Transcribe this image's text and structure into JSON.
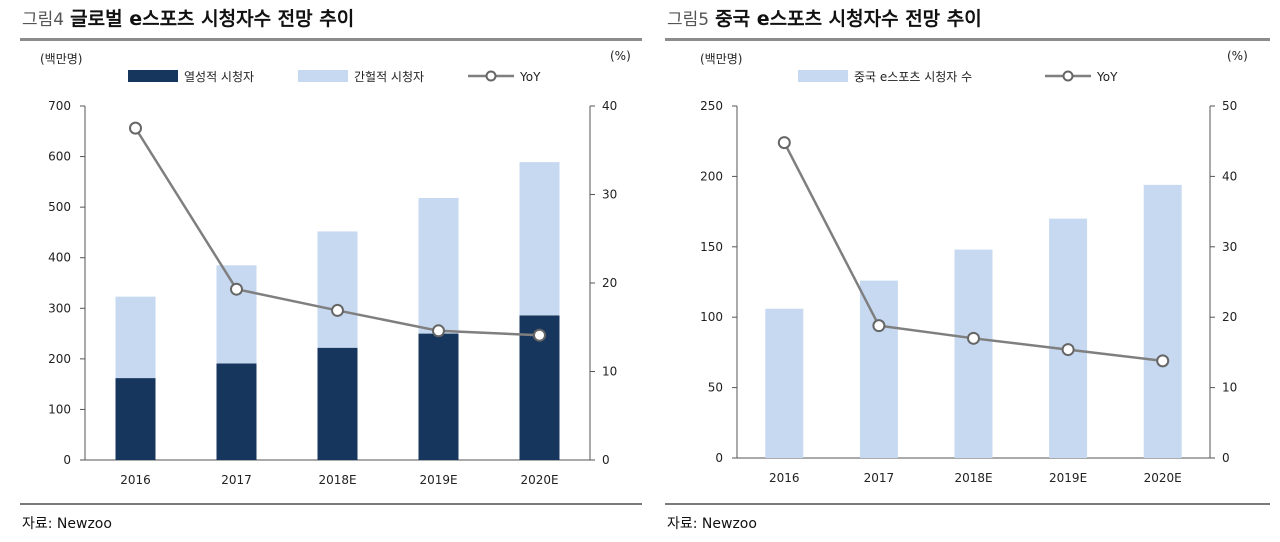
{
  "colors": {
    "dark_navy": "#17365d",
    "light_blue": "#c6d9f1",
    "yoy_line": "#7f7f7f",
    "rule": "#8c8c8c"
  },
  "figures": [
    {
      "label": "그림4",
      "title": "글로벌 e스포츠 시청자수 전망 추이",
      "source": "자료: Newzoo",
      "y_unit": "(백만명)",
      "y2_unit": "(%)",
      "legend": [
        "열성적 시청자",
        "간헐적 시청자",
        "YoY"
      ]
    },
    {
      "label": "그림5",
      "title": "중국 e스포츠 시청자수 전망 추이",
      "source": "자료: Newzoo",
      "y_unit": "(백만명)",
      "y2_unit": "(%)",
      "legend": [
        "중국 e스포츠 시청자 수",
        "YoY"
      ]
    }
  ],
  "chart_data": [
    {
      "type": "bar",
      "stacked": true,
      "title": "글로벌 e스포츠 시청자수 전망 추이",
      "categories": [
        "2016",
        "2017",
        "2018E",
        "2019E",
        "2020E"
      ],
      "series": [
        {
          "name": "열성적 시청자",
          "axis": "left",
          "color": "#17365d",
          "values": [
            162,
            191,
            222,
            250,
            286
          ]
        },
        {
          "name": "간헐적 시청자",
          "axis": "left",
          "color": "#c6d9f1",
          "values": [
            161,
            194,
            230,
            268,
            303
          ]
        },
        {
          "name": "YoY",
          "axis": "right",
          "kind": "line",
          "color": "#7f7f7f",
          "values": [
            37.5,
            19.3,
            16.9,
            14.6,
            14.1
          ]
        }
      ],
      "ylabel": "(백만명)",
      "ylim": [
        0,
        700
      ],
      "yticks": [
        0,
        100,
        200,
        300,
        400,
        500,
        600,
        700
      ],
      "y2label": "(%)",
      "y2lim": [
        0,
        40
      ],
      "y2ticks": [
        0,
        10,
        20,
        30,
        40
      ],
      "legend_position": "top"
    },
    {
      "type": "bar",
      "stacked": false,
      "title": "중국 e스포츠 시청자수 전망 추이",
      "categories": [
        "2016",
        "2017",
        "2018E",
        "2019E",
        "2020E"
      ],
      "series": [
        {
          "name": "중국 e스포츠 시청자 수",
          "axis": "left",
          "color": "#c6d9f1",
          "values": [
            106,
            126,
            148,
            170,
            194
          ]
        },
        {
          "name": "YoY",
          "axis": "right",
          "kind": "line",
          "color": "#7f7f7f",
          "values": [
            44.8,
            18.8,
            17.0,
            15.4,
            13.8
          ]
        }
      ],
      "ylabel": "(백만명)",
      "ylim": [
        0,
        250
      ],
      "yticks": [
        0,
        50,
        100,
        150,
        200,
        250
      ],
      "y2label": "(%)",
      "y2lim": [
        0,
        50
      ],
      "y2ticks": [
        0,
        10,
        20,
        30,
        40,
        50
      ],
      "legend_position": "top"
    }
  ]
}
